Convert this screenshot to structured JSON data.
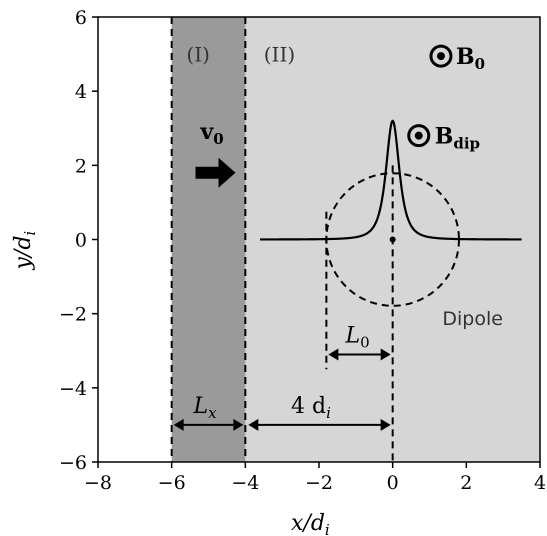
{
  "chart_data": {
    "type": "diagram",
    "xlim": [
      -8,
      4
    ],
    "ylim": [
      -6,
      6
    ],
    "x_ticks": [
      -8,
      -6,
      -4,
      -2,
      0,
      2,
      4
    ],
    "y_ticks": [
      -6,
      -4,
      -2,
      0,
      2,
      4,
      6
    ],
    "x_tick_labels": [
      "−8",
      "−6",
      "−4",
      "−2",
      "0",
      "2",
      "4"
    ],
    "y_tick_labels": [
      "−6",
      "−4",
      "−2",
      "0",
      "2",
      "4",
      "6"
    ],
    "xlabel": "x/d",
    "xlabel_sub": "i",
    "ylabel": "y/d",
    "ylabel_sub": "i",
    "region_I": {
      "label": "(I)",
      "x_range": [
        -6,
        -4
      ],
      "color": "#9a9a9a"
    },
    "region_II": {
      "label": "(II)",
      "x_range": [
        -4,
        4
      ],
      "color": "#d6d6d6"
    },
    "dashed_lines_x": [
      -6,
      -4
    ],
    "velocity": {
      "label": "v",
      "sub": "0",
      "arrow_at": [
        -5.0,
        1.8
      ]
    },
    "B0": {
      "label": "B",
      "sub": "0",
      "at": [
        1.8,
        5.0
      ]
    },
    "Bdip": {
      "label": "B",
      "sub": "dip",
      "at": [
        0.6,
        2.8
      ]
    },
    "dipole": {
      "label": "Dipole",
      "center": [
        0,
        0
      ],
      "radius": 1.8,
      "peak_height": 3.2,
      "profile_x_range": [
        -3.6,
        3.5
      ]
    },
    "L0": {
      "label": "L",
      "sub": "0",
      "from": -1.8,
      "to": 0,
      "y": -3.1
    },
    "Lx": {
      "label": "L",
      "sub": "x",
      "from": -6,
      "to": -4,
      "y": -5.0
    },
    "four_di": {
      "label": "4 d",
      "sub": "i",
      "from": -4,
      "to": 0,
      "y": -5.0
    }
  }
}
